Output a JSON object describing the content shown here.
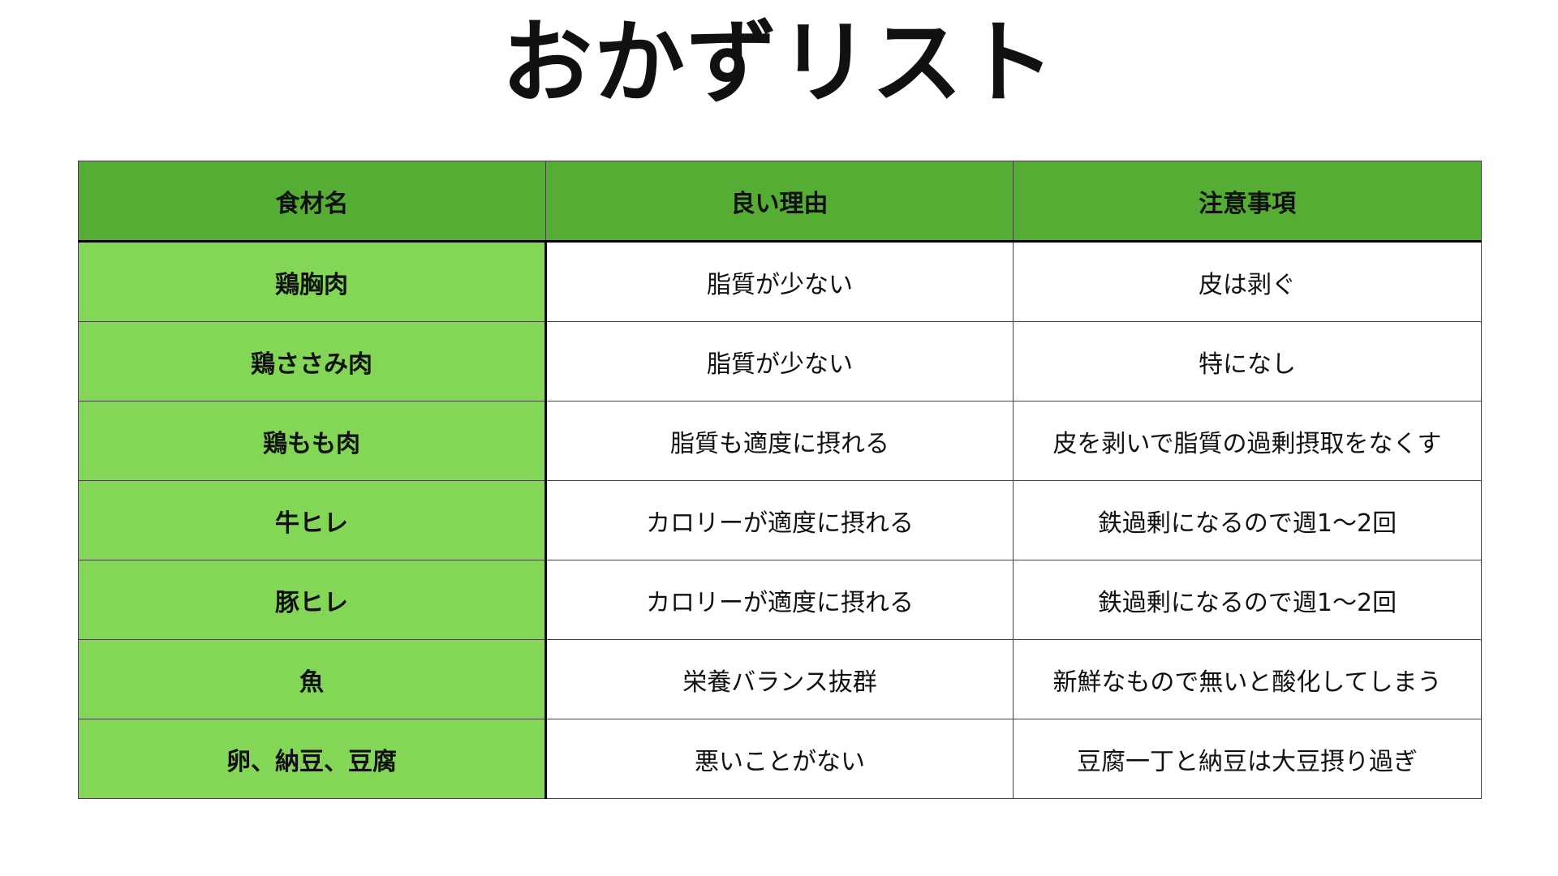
{
  "title": "おかずリスト",
  "colors": {
    "header": "#55ae33",
    "name_column": "#84d656"
  },
  "table": {
    "headers": [
      "食材名",
      "良い理由",
      "注意事項"
    ],
    "rows": [
      [
        "鶏胸肉",
        "脂質が少ない",
        "皮は剥ぐ"
      ],
      [
        "鶏ささみ肉",
        "脂質が少ない",
        "特になし"
      ],
      [
        "鶏もも肉",
        "脂質も適度に摂れる",
        "皮を剥いで脂質の過剰摂取をなくす"
      ],
      [
        "牛ヒレ",
        "カロリーが適度に摂れる",
        "鉄過剰になるので週1〜2回"
      ],
      [
        "豚ヒレ",
        "カロリーが適度に摂れる",
        "鉄過剰になるので週1〜2回"
      ],
      [
        "魚",
        "栄養バランス抜群",
        "新鮮なもので無いと酸化してしまう"
      ],
      [
        "卵、納豆、豆腐",
        "悪いことがない",
        "豆腐一丁と納豆は大豆摂り過ぎ"
      ]
    ]
  }
}
